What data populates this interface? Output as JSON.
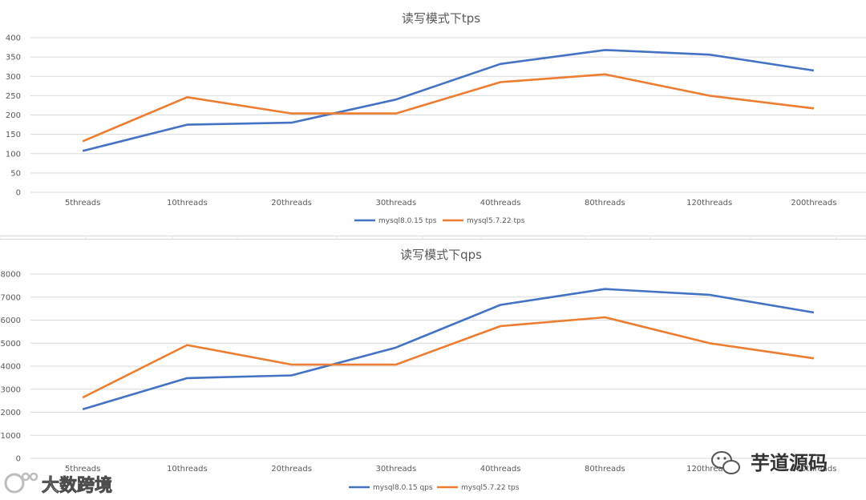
{
  "colors": {
    "series_blue": "#4472c4",
    "series_orange": "#ed7d31",
    "gridline": "#d9d9d9",
    "text": "#595959"
  },
  "chart_data": [
    {
      "type": "line",
      "title": "读写模式下tps",
      "categories": [
        "5threads",
        "10threads",
        "20threads",
        "30threads",
        "40threads",
        "80threads",
        "120threads",
        "200threads"
      ],
      "series": [
        {
          "name": "mysql8.0.15 tps",
          "color": "#4472c4",
          "values": [
            107,
            175,
            180,
            240,
            332,
            368,
            356,
            315
          ]
        },
        {
          "name": "mysql5.7.22 tps",
          "color": "#ed7d31",
          "values": [
            132,
            246,
            204,
            204,
            285,
            305,
            250,
            217
          ]
        }
      ],
      "ylim": [
        0,
        400
      ],
      "yticks": [
        0,
        50,
        100,
        150,
        200,
        250,
        300,
        350,
        400
      ],
      "grid": true,
      "legend": "bottom"
    },
    {
      "type": "line",
      "title": "读写模式下qps",
      "categories": [
        "5threads",
        "10threads",
        "20threads",
        "30threads",
        "40threads",
        "80threads",
        "120threads",
        "200threads"
      ],
      "series": [
        {
          "name": "mysql8.0.15 qps",
          "color": "#4472c4",
          "values": [
            2130,
            3480,
            3600,
            4810,
            6660,
            7350,
            7100,
            6330
          ]
        },
        {
          "name": "mysql5.7.22 tps",
          "color": "#ed7d31",
          "values": [
            2640,
            4920,
            4070,
            4070,
            5740,
            6120,
            5000,
            4340
          ]
        }
      ],
      "ylim": [
        0,
        8000
      ],
      "yticks": [
        0,
        1000,
        2000,
        3000,
        4000,
        5000,
        6000,
        7000,
        8000
      ],
      "grid": true,
      "legend": "bottom"
    }
  ],
  "watermarks": {
    "left_text": "大数跨境",
    "right_text": "芋道源码"
  }
}
